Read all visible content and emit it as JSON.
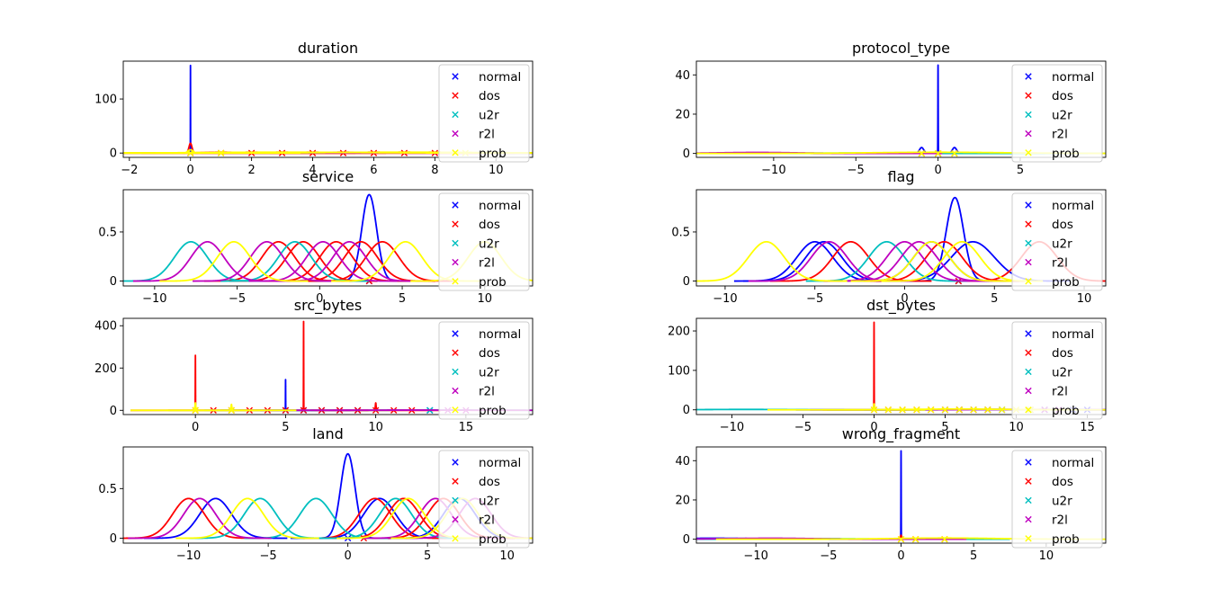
{
  "legend": {
    "entries": [
      "normal",
      "dos",
      "u2r",
      "r2l",
      "prob"
    ],
    "colors": [
      "#0000ff",
      "#ff0000",
      "#00bfbf",
      "#bf00bf",
      "#ffff00"
    ],
    "marker": "x",
    "placement": "upper-right"
  },
  "chart_data": [
    {
      "type": "line",
      "title": "duration",
      "xticks": [
        -2,
        0,
        2,
        4,
        6,
        8,
        10
      ],
      "yticks": [
        0,
        100
      ],
      "xlim": [
        -2.2,
        11.2
      ],
      "ylim": [
        -8,
        170
      ],
      "series": [
        {
          "class_index": 0,
          "curves": [
            {
              "mu": 0,
              "sigma": 0.0025,
              "amp": 162
            }
          ],
          "markers": [
            0
          ]
        },
        {
          "class_index": 1,
          "curves": [
            {
              "mu": 0,
              "sigma": 0.05,
              "amp": 18
            },
            {
              "mu": 1,
              "sigma": 0.6,
              "amp": 1.5
            },
            {
              "mu": 2,
              "sigma": 0.6,
              "amp": 1.5
            },
            {
              "mu": 3,
              "sigma": 0.6,
              "amp": 1.5
            },
            {
              "mu": 4,
              "sigma": 0.6,
              "amp": 1.5
            },
            {
              "mu": 5,
              "sigma": 0.6,
              "amp": 1.5
            },
            {
              "mu": 6,
              "sigma": 0.6,
              "amp": 1.5
            },
            {
              "mu": 7,
              "sigma": 0.6,
              "amp": 1.5
            },
            {
              "mu": 8,
              "sigma": 0.6,
              "amp": 1.5
            }
          ],
          "markers": [
            0,
            1,
            2,
            3,
            4,
            5,
            6,
            7,
            8
          ]
        },
        {
          "class_index": 2,
          "curves": [
            {
              "mu": 2,
              "sigma": 3.6,
              "amp": 0.4
            }
          ],
          "markers": []
        },
        {
          "class_index": 3,
          "curves": [
            {
              "mu": 1.5,
              "sigma": 2.5,
              "amp": 0.5
            }
          ],
          "markers": []
        },
        {
          "class_index": 4,
          "curves": [
            {
              "mu": 0,
              "sigma": 0.08,
              "amp": 6
            },
            {
              "mu": 3,
              "sigma": 2.5,
              "amp": 1.5
            },
            {
              "mu": 7,
              "sigma": 2.5,
              "amp": 1.5
            }
          ],
          "markers": [
            0,
            1,
            9
          ]
        }
      ]
    },
    {
      "type": "line",
      "title": "protocol_type",
      "xticks": [
        -10,
        -5,
        0,
        5
      ],
      "yticks": [
        0,
        20,
        40
      ],
      "xlim": [
        -14.7,
        10.2
      ],
      "ylim": [
        -2,
        47
      ],
      "series": [
        {
          "class_index": 0,
          "curves": [
            {
              "mu": 0,
              "sigma": 0.009,
              "amp": 45
            },
            {
              "mu": -1,
              "sigma": 0.13,
              "amp": 3
            },
            {
              "mu": 1,
              "sigma": 0.13,
              "amp": 3
            }
          ],
          "markers": [
            0
          ]
        },
        {
          "class_index": 1,
          "curves": [
            {
              "mu": -1,
              "sigma": 1.5,
              "amp": 0.4
            },
            {
              "mu": 0,
              "sigma": 1.5,
              "amp": 0.4
            },
            {
              "mu": 1,
              "sigma": 1.5,
              "amp": 0.4
            }
          ],
          "markers": [
            -1,
            0,
            1
          ]
        },
        {
          "class_index": 2,
          "curves": [
            {
              "mu": -5,
              "sigma": 3.5,
              "amp": 0.2
            }
          ],
          "markers": []
        },
        {
          "class_index": 3,
          "curves": [
            {
              "mu": -11,
              "sigma": 2.5,
              "amp": 0.5
            }
          ],
          "markers": []
        },
        {
          "class_index": 4,
          "curves": [
            {
              "mu": 0,
              "sigma": 4,
              "amp": 0.6
            }
          ],
          "markers": [
            -1,
            0,
            1
          ]
        }
      ]
    },
    {
      "type": "line",
      "title": "service",
      "xticks": [
        -10,
        -5,
        0,
        5,
        10
      ],
      "yticks": [
        0,
        0.5
      ],
      "xlim": [
        -11.9,
        12.9
      ],
      "ylim": [
        -0.05,
        0.93
      ],
      "series": [
        {
          "class_index": 0,
          "curves": [
            {
              "mu": 3,
              "sigma": 0.45,
              "amp": 0.88
            }
          ],
          "markers": [
            3
          ]
        },
        {
          "class_index": 1,
          "curves": [
            {
              "mu": -2.5,
              "sigma": 1,
              "amp": 0.4
            },
            {
              "mu": -1,
              "sigma": 1,
              "amp": 0.4
            },
            {
              "mu": 1,
              "sigma": 1,
              "amp": 0.4
            },
            {
              "mu": 2.5,
              "sigma": 1,
              "amp": 0.4
            },
            {
              "mu": 3.8,
              "sigma": 1,
              "amp": 0.4
            }
          ],
          "markers": [
            3
          ]
        },
        {
          "class_index": 2,
          "curves": [
            {
              "mu": -7.8,
              "sigma": 1,
              "amp": 0.4
            },
            {
              "mu": -1.5,
              "sigma": 1,
              "amp": 0.4
            }
          ],
          "markers": []
        },
        {
          "class_index": 3,
          "curves": [
            {
              "mu": -6.8,
              "sigma": 1,
              "amp": 0.4
            },
            {
              "mu": -3.2,
              "sigma": 1,
              "amp": 0.4
            },
            {
              "mu": 0.2,
              "sigma": 1,
              "amp": 0.4
            },
            {
              "mu": 1.8,
              "sigma": 1,
              "amp": 0.4
            }
          ],
          "markers": []
        },
        {
          "class_index": 4,
          "curves": [
            {
              "mu": -5.2,
              "sigma": 1,
              "amp": 0.4
            },
            {
              "mu": 5.2,
              "sigma": 1,
              "amp": 0.4
            },
            {
              "mu": 10,
              "sigma": 1,
              "amp": 0.4
            }
          ],
          "markers": []
        }
      ]
    },
    {
      "type": "line",
      "title": "flag",
      "xticks": [
        -10,
        -5,
        0,
        5,
        10
      ],
      "yticks": [
        0,
        0.5
      ],
      "xlim": [
        -11.6,
        11.2
      ],
      "ylim": [
        -0.05,
        0.93
      ],
      "series": [
        {
          "class_index": 0,
          "curves": [
            {
              "mu": 2.8,
              "sigma": 0.48,
              "amp": 0.85
            },
            {
              "mu": -5,
              "sigma": 1,
              "amp": 0.4
            },
            {
              "mu": -4.5,
              "sigma": 1,
              "amp": 0.4
            },
            {
              "mu": 1.5,
              "sigma": 1,
              "amp": 0.4
            },
            {
              "mu": 3.8,
              "sigma": 1.2,
              "amp": 0.4
            }
          ],
          "markers": [
            3
          ]
        },
        {
          "class_index": 1,
          "curves": [
            {
              "mu": -3,
              "sigma": 1,
              "amp": 0.4
            },
            {
              "mu": 2.2,
              "sigma": 1,
              "amp": 0.4
            },
            {
              "mu": 7.5,
              "sigma": 1,
              "amp": 0.4
            }
          ],
          "markers": [
            3
          ]
        },
        {
          "class_index": 2,
          "curves": [
            {
              "mu": -1,
              "sigma": 1,
              "amp": 0.4
            }
          ],
          "markers": []
        },
        {
          "class_index": 3,
          "curves": [
            {
              "mu": -4.2,
              "sigma": 1,
              "amp": 0.4
            },
            {
              "mu": 0,
              "sigma": 1,
              "amp": 0.4
            },
            {
              "mu": 0.8,
              "sigma": 1,
              "amp": 0.4
            }
          ],
          "markers": []
        },
        {
          "class_index": 4,
          "curves": [
            {
              "mu": -7.7,
              "sigma": 1,
              "amp": 0.4
            },
            {
              "mu": 1.5,
              "sigma": 1,
              "amp": 0.4
            },
            {
              "mu": 3.2,
              "sigma": 1,
              "amp": 0.4
            }
          ],
          "markers": []
        }
      ]
    },
    {
      "type": "line",
      "title": "src_bytes",
      "xticks": [
        0,
        5,
        10,
        15
      ],
      "yticks": [
        0,
        200,
        400
      ],
      "xlim": [
        -4,
        18.7
      ],
      "ylim": [
        -20,
        435
      ],
      "series": [
        {
          "class_index": 0,
          "curves": [
            {
              "mu": 5,
              "sigma": 0.005,
              "amp": 145
            }
          ],
          "markers": [
            5,
            6,
            7,
            8,
            9,
            13
          ]
        },
        {
          "class_index": 1,
          "curves": [
            {
              "mu": 0,
              "sigma": 0.006,
              "amp": 260
            },
            {
              "mu": 6,
              "sigma": 0.006,
              "amp": 420
            },
            {
              "mu": 10,
              "sigma": 0.02,
              "amp": 35
            }
          ],
          "markers": [
            0,
            1,
            2,
            3,
            4,
            5,
            6,
            7,
            8,
            9,
            10,
            11,
            12
          ]
        },
        {
          "class_index": 2,
          "curves": [
            {
              "mu": 14,
              "sigma": 3,
              "amp": 1
            }
          ],
          "markers": [
            13
          ]
        },
        {
          "class_index": 3,
          "curves": [
            {
              "mu": 12,
              "sigma": 3,
              "amp": 1
            }
          ],
          "markers": [
            14,
            15
          ]
        },
        {
          "class_index": 4,
          "curves": [
            {
              "mu": 0,
              "sigma": 0.02,
              "amp": 35
            },
            {
              "mu": 2,
              "sigma": 0.02,
              "amp": 28
            }
          ],
          "markers": [
            0,
            2
          ]
        }
      ]
    },
    {
      "type": "line",
      "title": "dst_bytes",
      "xticks": [
        -10,
        -5,
        0,
        5,
        10,
        15
      ],
      "yticks": [
        0,
        100,
        200
      ],
      "xlim": [
        -12.5,
        16.3
      ],
      "ylim": [
        -12,
        232
      ],
      "series": [
        {
          "class_index": 0,
          "curves": [
            {
              "mu": 8,
              "sigma": 3,
              "amp": 1
            }
          ],
          "markers": [
            5,
            6,
            7,
            8,
            9,
            11,
            12,
            13,
            14,
            15
          ]
        },
        {
          "class_index": 1,
          "curves": [
            {
              "mu": 0,
              "sigma": 0.008,
              "amp": 222
            }
          ],
          "markers": [
            0,
            1,
            2,
            3,
            4,
            5,
            6,
            7,
            8
          ]
        },
        {
          "class_index": 2,
          "curves": [
            {
              "mu": -9,
              "sigma": 3,
              "amp": 1
            }
          ],
          "markers": [
            12
          ]
        },
        {
          "class_index": 3,
          "curves": [
            {
              "mu": 9,
              "sigma": 3,
              "amp": 1
            }
          ],
          "markers": [
            12,
            13
          ]
        },
        {
          "class_index": 4,
          "curves": [
            {
              "mu": 0,
              "sigma": 0.02,
              "amp": 15
            },
            {
              "mu": 6,
              "sigma": 3,
              "amp": 2
            }
          ],
          "markers": [
            0,
            1,
            2,
            3,
            4,
            5,
            6,
            7,
            8,
            9,
            10,
            11
          ]
        }
      ]
    },
    {
      "type": "line",
      "title": "land",
      "xticks": [
        -10,
        -5,
        0,
        5,
        10
      ],
      "yticks": [
        0,
        0.5
      ],
      "xlim": [
        -14.1,
        11.6
      ],
      "ylim": [
        -0.05,
        0.92
      ],
      "series": [
        {
          "class_index": 0,
          "curves": [
            {
              "mu": 0,
              "sigma": 0.45,
              "amp": 0.85
            },
            {
              "mu": -8.3,
              "sigma": 1,
              "amp": 0.4
            },
            {
              "mu": 2,
              "sigma": 1,
              "amp": 0.4
            },
            {
              "mu": 7,
              "sigma": 1,
              "amp": 0.4
            }
          ],
          "markers": [
            0
          ]
        },
        {
          "class_index": 1,
          "curves": [
            {
              "mu": -10,
              "sigma": 1,
              "amp": 0.4
            },
            {
              "mu": 1.7,
              "sigma": 1,
              "amp": 0.4
            },
            {
              "mu": 3.5,
              "sigma": 1,
              "amp": 0.4
            },
            {
              "mu": 6,
              "sigma": 1,
              "amp": 0.4
            }
          ],
          "markers": [
            1
          ]
        },
        {
          "class_index": 2,
          "curves": [
            {
              "mu": -5.5,
              "sigma": 1,
              "amp": 0.4
            },
            {
              "mu": -2,
              "sigma": 1,
              "amp": 0.4
            },
            {
              "mu": 3,
              "sigma": 1,
              "amp": 0.4
            }
          ],
          "markers": []
        },
        {
          "class_index": 3,
          "curves": [
            {
              "mu": -9.3,
              "sigma": 1,
              "amp": 0.4
            },
            {
              "mu": 5.5,
              "sigma": 1,
              "amp": 0.4
            },
            {
              "mu": 8,
              "sigma": 1,
              "amp": 0.4
            }
          ],
          "markers": []
        },
        {
          "class_index": 4,
          "curves": [
            {
              "mu": -6.3,
              "sigma": 1,
              "amp": 0.4
            },
            {
              "mu": 3.8,
              "sigma": 1,
              "amp": 0.4
            },
            {
              "mu": 7.2,
              "sigma": 1,
              "amp": 0.4
            }
          ],
          "markers": []
        }
      ]
    },
    {
      "type": "line",
      "title": "wrong_fragment",
      "xticks": [
        -10,
        -5,
        0,
        5,
        10
      ],
      "yticks": [
        0,
        20,
        40
      ],
      "xlim": [
        -14.1,
        14.1
      ],
      "ylim": [
        -2,
        47
      ],
      "series": [
        {
          "class_index": 0,
          "curves": [
            {
              "mu": 0,
              "sigma": 0.009,
              "amp": 45
            },
            {
              "mu": -13,
              "sigma": 3,
              "amp": 0.5
            }
          ],
          "markers": []
        },
        {
          "class_index": 1,
          "curves": [
            {
              "mu": 0,
              "sigma": 0.04,
              "amp": 2
            }
          ],
          "markers": [
            0,
            1,
            3
          ]
        },
        {
          "class_index": 2,
          "curves": [
            {
              "mu": -6,
              "sigma": 3,
              "amp": 0.3
            }
          ],
          "markers": []
        },
        {
          "class_index": 3,
          "curves": [
            {
              "mu": -9,
              "sigma": 3,
              "amp": 0.5
            }
          ],
          "markers": []
        },
        {
          "class_index": 4,
          "curves": [
            {
              "mu": 3,
              "sigma": 3.5,
              "amp": 0.6
            }
          ],
          "markers": [
            0,
            1,
            3
          ]
        }
      ]
    }
  ]
}
